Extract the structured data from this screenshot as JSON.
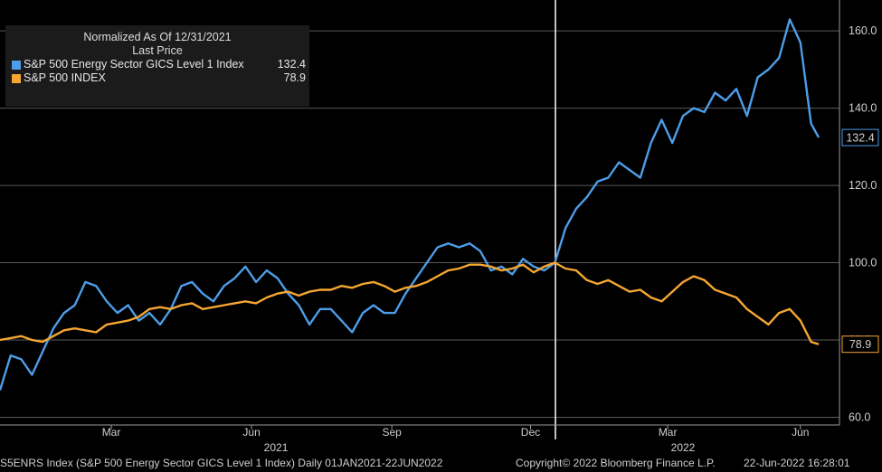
{
  "chart_data": {
    "type": "line",
    "title": "Normalized As Of 12/31/2021",
    "subtitle": "Last Price",
    "ylim": [
      58,
      168
    ],
    "y_ticks": [
      "60.0",
      "80.0",
      "100.0",
      "120.0",
      "140.0",
      "160.0"
    ],
    "y_tick_values": [
      60,
      80,
      100,
      120,
      140,
      160
    ],
    "x_ticks": [
      "Mar",
      "Jun",
      "Sep",
      "Dec",
      "Mar",
      "Jun"
    ],
    "year_labels": [
      "2021",
      "2022"
    ],
    "grid": true,
    "legend_position": "top-left",
    "series": [
      {
        "name": "S&P 500 Energy Sector GICS Level 1 Index",
        "last_value": "132.4",
        "color": "#4d9de8",
        "x": [
          "2021-01-01",
          "2021-01-08",
          "2021-01-15",
          "2021-01-22",
          "2021-01-29",
          "2021-02-05",
          "2021-02-12",
          "2021-02-19",
          "2021-02-26",
          "2021-03-05",
          "2021-03-12",
          "2021-03-19",
          "2021-03-26",
          "2021-04-02",
          "2021-04-09",
          "2021-04-16",
          "2021-04-23",
          "2021-04-30",
          "2021-05-07",
          "2021-05-14",
          "2021-05-21",
          "2021-05-28",
          "2021-06-04",
          "2021-06-11",
          "2021-06-18",
          "2021-06-25",
          "2021-07-02",
          "2021-07-09",
          "2021-07-16",
          "2021-07-23",
          "2021-07-30",
          "2021-08-06",
          "2021-08-13",
          "2021-08-20",
          "2021-08-27",
          "2021-09-03",
          "2021-09-10",
          "2021-09-17",
          "2021-09-24",
          "2021-10-01",
          "2021-10-08",
          "2021-10-15",
          "2021-10-22",
          "2021-10-29",
          "2021-11-05",
          "2021-11-12",
          "2021-11-19",
          "2021-11-26",
          "2021-12-03",
          "2021-12-10",
          "2021-12-17",
          "2021-12-24",
          "2021-12-31",
          "2022-01-07",
          "2022-01-14",
          "2022-01-21",
          "2022-01-28",
          "2022-02-04",
          "2022-02-11",
          "2022-02-18",
          "2022-02-25",
          "2022-03-04",
          "2022-03-11",
          "2022-03-18",
          "2022-03-25",
          "2022-04-01",
          "2022-04-08",
          "2022-04-15",
          "2022-04-22",
          "2022-04-29",
          "2022-05-06",
          "2022-05-13",
          "2022-05-20",
          "2022-05-27",
          "2022-06-03",
          "2022-06-10",
          "2022-06-17",
          "2022-06-22"
        ],
        "y": [
          67,
          76,
          75,
          71,
          77,
          83,
          87,
          89,
          95,
          94,
          90,
          87,
          89,
          85,
          87,
          84,
          88,
          94,
          95,
          92,
          90,
          94,
          96,
          99,
          95,
          98,
          96,
          92,
          89,
          84,
          88,
          88,
          85,
          82,
          87,
          89,
          87,
          87,
          92,
          96,
          100,
          104,
          105,
          104,
          105,
          103,
          98,
          99,
          97,
          101,
          99,
          98,
          100,
          109,
          114,
          117,
          121,
          122,
          126,
          124,
          122,
          131,
          137,
          131,
          138,
          140,
          139,
          144,
          142,
          145,
          138,
          148,
          150,
          153,
          163,
          157,
          136,
          132.4
        ]
      },
      {
        "name": "S&P 500 INDEX",
        "last_value": "78.9",
        "color": "#f5a632",
        "x": [
          "2021-01-01",
          "2021-01-08",
          "2021-01-15",
          "2021-01-22",
          "2021-01-29",
          "2021-02-05",
          "2021-02-12",
          "2021-02-19",
          "2021-02-26",
          "2021-03-05",
          "2021-03-12",
          "2021-03-19",
          "2021-03-26",
          "2021-04-02",
          "2021-04-09",
          "2021-04-16",
          "2021-04-23",
          "2021-04-30",
          "2021-05-07",
          "2021-05-14",
          "2021-05-21",
          "2021-05-28",
          "2021-06-04",
          "2021-06-11",
          "2021-06-18",
          "2021-06-25",
          "2021-07-02",
          "2021-07-09",
          "2021-07-16",
          "2021-07-23",
          "2021-07-30",
          "2021-08-06",
          "2021-08-13",
          "2021-08-20",
          "2021-08-27",
          "2021-09-03",
          "2021-09-10",
          "2021-09-17",
          "2021-09-24",
          "2021-10-01",
          "2021-10-08",
          "2021-10-15",
          "2021-10-22",
          "2021-10-29",
          "2021-11-05",
          "2021-11-12",
          "2021-11-19",
          "2021-11-26",
          "2021-12-03",
          "2021-12-10",
          "2021-12-17",
          "2021-12-24",
          "2021-12-31",
          "2022-01-07",
          "2022-01-14",
          "2022-01-21",
          "2022-01-28",
          "2022-02-04",
          "2022-02-11",
          "2022-02-18",
          "2022-02-25",
          "2022-03-04",
          "2022-03-11",
          "2022-03-18",
          "2022-03-25",
          "2022-04-01",
          "2022-04-08",
          "2022-04-15",
          "2022-04-22",
          "2022-04-29",
          "2022-05-06",
          "2022-05-13",
          "2022-05-20",
          "2022-05-27",
          "2022-06-03",
          "2022-06-10",
          "2022-06-17",
          "2022-06-22"
        ],
        "y": [
          80,
          80.5,
          81,
          80,
          79.5,
          81,
          82.5,
          83,
          82.5,
          82,
          84,
          84.5,
          85,
          86,
          88,
          88.5,
          88,
          89,
          89.5,
          88,
          88.5,
          89,
          89.5,
          90,
          89.5,
          91,
          92,
          92.5,
          91.5,
          92.5,
          93,
          93,
          94,
          93.5,
          94.5,
          95,
          94,
          92.5,
          93.5,
          94,
          95,
          96.5,
          98,
          98.5,
          99.5,
          99.5,
          99,
          98,
          98.5,
          99.5,
          97.5,
          99,
          100,
          98.5,
          98,
          95.5,
          94.5,
          95.5,
          94,
          92.5,
          93,
          91,
          90,
          92.5,
          95,
          96.5,
          95.5,
          93,
          92,
          91,
          88,
          86,
          84,
          87,
          88,
          85,
          79.5,
          78.9
        ]
      }
    ]
  },
  "legend": {
    "title_line1": "Normalized As Of 12/31/2021",
    "title_line2": "Last Price",
    "entries": [
      {
        "label": "S&P 500 Energy Sector GICS Level 1 Index",
        "value": "132.4"
      },
      {
        "label": "S&P 500 INDEX",
        "value": "78.9"
      }
    ]
  },
  "footer": {
    "left": "S5ENRS Index (S&P 500 Energy Sector GICS Level 1 Index)  Daily 01JAN2021-22JUN2022",
    "middle": "Copyright© 2022 Bloomberg Finance L.P.",
    "right": "22-Jun-2022 16:28:01"
  }
}
